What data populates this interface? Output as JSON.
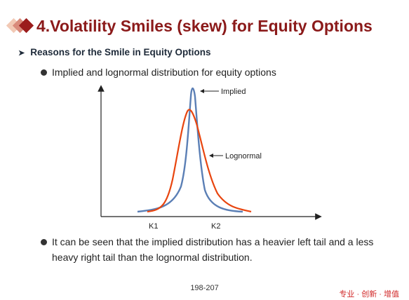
{
  "slide": {
    "title": "4.Volatility Smiles (skew) for Equity Options",
    "subheading": "Reasons for the Smile in Equity Options",
    "bullets": [
      "Implied and lognormal distribution for equity options",
      "It can be seen that the implied distribution has a heavier left tail and a less heavy right tail than the lognormal distribution."
    ],
    "page_number": "198-207",
    "footer_brand": "专业 · 创新 · 增值"
  },
  "icons": {
    "logo": "diamond-logo-icon",
    "subheading_marker": "arrowhead-icon",
    "bullet_marker": "bullet-dot-icon"
  },
  "colors": {
    "title": "#8b1a1a",
    "implied_curve": "#5b7fb5",
    "lognormal_curve": "#e8450f",
    "brand": "#d12a2a"
  },
  "chart_data": {
    "type": "line",
    "title": "",
    "xlabel": "",
    "ylabel": "",
    "x_ticks": [
      "K1",
      "K2"
    ],
    "series": [
      {
        "name": "Implied",
        "color": "#5b7fb5"
      },
      {
        "name": "Lognormal",
        "color": "#e8450f"
      }
    ],
    "annotations": [
      "Implied",
      "Lognormal"
    ],
    "grid": false
  }
}
